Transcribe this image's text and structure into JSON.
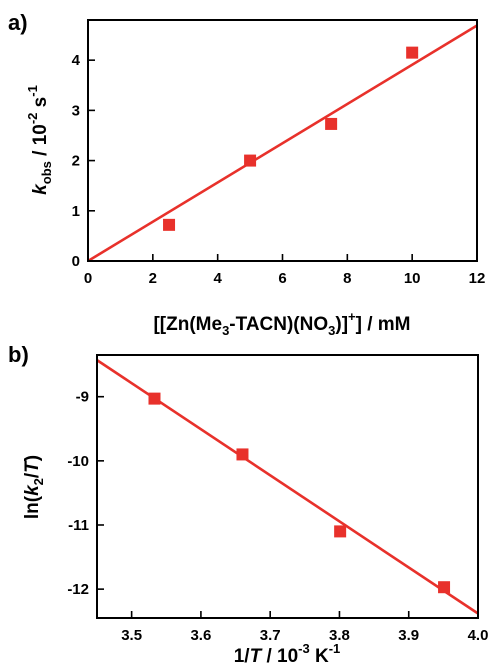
{
  "chart_data": [
    {
      "panel_label": "a)",
      "type": "scatter",
      "xlabel": "[[Zn(Me3-TACN)(NO3)]+] / mM",
      "ylabel": "kobs / 10-2 s-1",
      "xlim": [
        0,
        12
      ],
      "ylim": [
        0,
        4.8
      ],
      "x_ticks": [
        0,
        2,
        4,
        6,
        8,
        10,
        12
      ],
      "y_ticks": [
        0,
        1,
        2,
        3,
        4
      ],
      "series": [
        {
          "x": [
            2.5,
            5.0,
            7.5,
            10.0
          ],
          "y": [
            0.72,
            2.0,
            2.73,
            4.15
          ]
        }
      ],
      "fit_line": {
        "x": [
          0,
          12
        ],
        "y": [
          0,
          4.69
        ]
      },
      "grid": false,
      "color": "#e8312b"
    },
    {
      "panel_label": "b)",
      "type": "scatter",
      "xlabel": "1/T / 10-3 K-1",
      "ylabel": "ln(k2/T)",
      "xlim": [
        3.45,
        4.0
      ],
      "ylim": [
        -12.45,
        -8.35
      ],
      "x_ticks": [
        3.5,
        3.6,
        3.7,
        3.8,
        3.9,
        4.0
      ],
      "y_ticks": [
        -9,
        -10,
        -11,
        -12
      ],
      "series": [
        {
          "x": [
            3.533,
            3.66,
            3.801,
            3.951
          ],
          "y": [
            -9.03,
            -9.9,
            -11.1,
            -11.97
          ]
        }
      ],
      "fit_line": {
        "x": [
          3.45,
          4.0
        ],
        "y": [
          -8.43,
          -12.38
        ]
      },
      "grid": false,
      "color": "#e8312b"
    }
  ]
}
